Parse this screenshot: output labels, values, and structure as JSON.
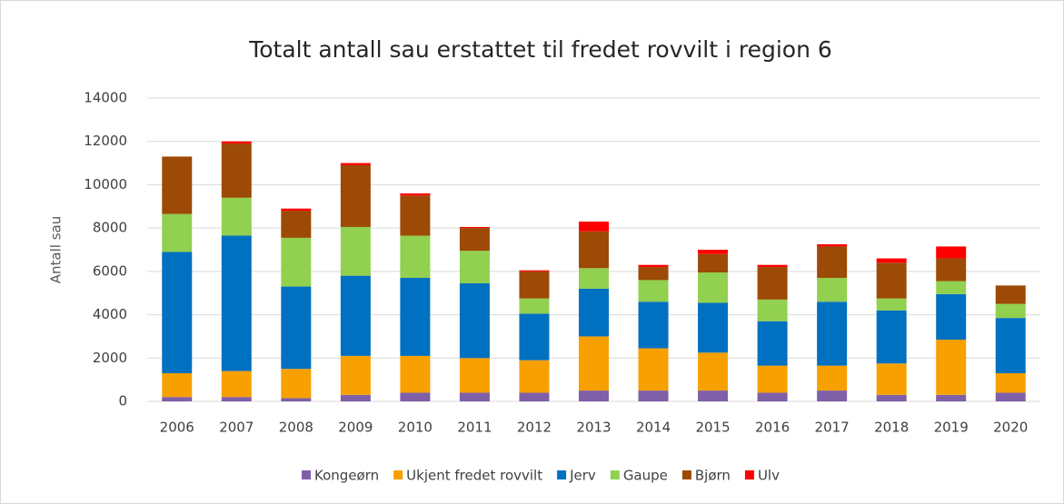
{
  "chart_data": {
    "type": "stacked_bar",
    "title": "Totalt antall sau erstattet til fredet rovvilt i region 6",
    "y_label": "Antall sau",
    "categories": [
      "2006",
      "2007",
      "2008",
      "2009",
      "2010",
      "2011",
      "2012",
      "2013",
      "2014",
      "2015",
      "2016",
      "2017",
      "2018",
      "2019",
      "2020"
    ],
    "series": [
      {
        "name": "Kongeørn",
        "color": "#7f5fa8",
        "values": [
          200,
          200,
          150,
          300,
          400,
          400,
          400,
          500,
          500,
          500,
          400,
          500,
          300,
          300,
          400
        ]
      },
      {
        "name": "Ukjent fredet rovvilt",
        "color": "#f7a000",
        "values": [
          1100,
          1200,
          1350,
          1800,
          1700,
          1600,
          1500,
          2500,
          1950,
          1750,
          1250,
          1150,
          1450,
          2550,
          900
        ]
      },
      {
        "name": "Jerv",
        "color": "#0070c0",
        "values": [
          5600,
          6250,
          3800,
          3700,
          3600,
          3450,
          2150,
          2200,
          2150,
          2300,
          2050,
          2950,
          2450,
          2100,
          2550
        ]
      },
      {
        "name": "Gaupe",
        "color": "#92d050",
        "values": [
          1750,
          1750,
          2250,
          2250,
          1950,
          1500,
          700,
          950,
          1000,
          1400,
          1000,
          1100,
          550,
          600,
          650
        ]
      },
      {
        "name": "Bjørn",
        "color": "#9c4a06",
        "values": [
          2650,
          2500,
          1250,
          2850,
          1850,
          1050,
          1250,
          1700,
          600,
          850,
          1500,
          1450,
          1650,
          1050,
          850
        ]
      },
      {
        "name": "Ulv",
        "color": "#ff0000",
        "values": [
          0,
          100,
          100,
          100,
          100,
          50,
          50,
          450,
          100,
          200,
          100,
          100,
          200,
          550,
          0
        ]
      }
    ],
    "ylim": [
      0,
      14000
    ],
    "yticks": [
      0,
      2000,
      4000,
      6000,
      8000,
      10000,
      12000,
      14000
    ],
    "grid": true,
    "legend": "bottom"
  }
}
